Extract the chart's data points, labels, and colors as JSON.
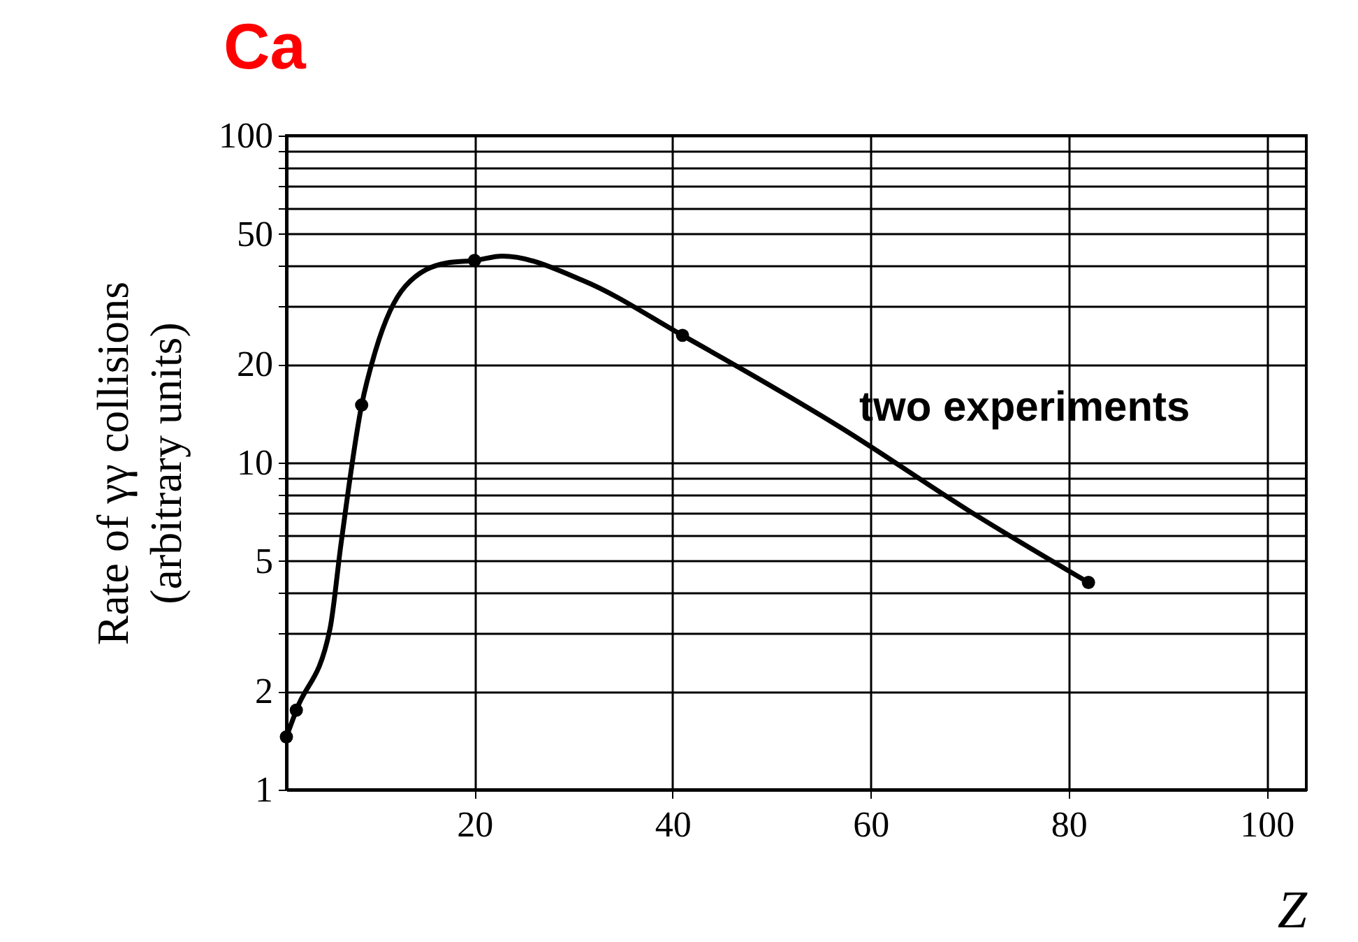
{
  "chart_data": {
    "type": "line",
    "title": "Ca",
    "xlabel": "Z",
    "ylabel": "Rate of γγ collisions\n(arbitrary units)",
    "log": "y",
    "grid": true,
    "xlim": [
      1,
      104
    ],
    "ylim": [
      1,
      100
    ],
    "xticks": [
      20,
      40,
      60,
      80,
      100
    ],
    "yticks": [
      1,
      2,
      {
        "value": 3,
        "label": null
      },
      {
        "value": 4,
        "label": null
      },
      5,
      {
        "value": 6,
        "label": null
      },
      {
        "value": 7,
        "label": null
      },
      {
        "value": 8,
        "label": null
      },
      {
        "value": 9,
        "label": null
      },
      10,
      20,
      {
        "value": 30,
        "label": null
      },
      {
        "value": 40,
        "label": null
      },
      50,
      {
        "value": 60,
        "label": null
      },
      {
        "value": 70,
        "label": null
      },
      {
        "value": 80,
        "label": null
      },
      {
        "value": 90,
        "label": null
      },
      100
    ],
    "annotations": [
      "two experiments"
    ],
    "series": [
      {
        "type": "line",
        "color": "#000000",
        "marker": "none",
        "line_style": "solid",
        "x": [
          1,
          2,
          5.4,
          6.5,
          8.6,
          10,
          13,
          17.2,
          20,
          22.8,
          31,
          41,
          56.8,
          71,
          82
        ],
        "values": [
          1.45,
          1.75,
          3.1,
          5.6,
          15,
          22,
          34.6,
          40.8,
          41.5,
          42.8,
          36,
          24.5,
          12.9,
          6.8,
          4.3
        ]
      },
      {
        "type": "scatter",
        "color": "#000000",
        "marker": "circle",
        "x": [
          1,
          2,
          8.6,
          20,
          41,
          82
        ],
        "values": [
          1.45,
          1.75,
          15,
          41.5,
          24.5,
          4.3
        ]
      }
    ]
  }
}
